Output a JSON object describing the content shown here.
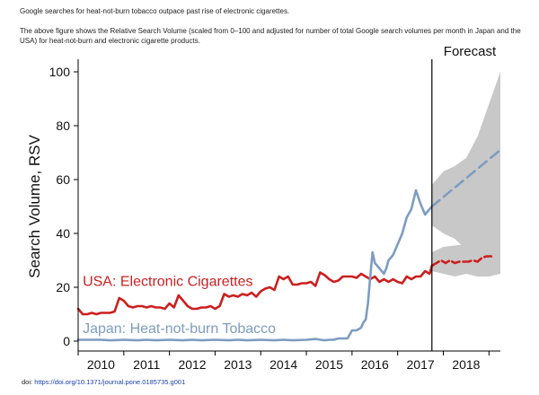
{
  "caption": {
    "title": "Google searches for heat-not-burn tobacco outpace past rise of electronic cigarettes.",
    "description": "The above figure shows the Relative Search Volume (scaled from 0–100 and adjusted for number of total Google search volumes per month in Japan and the USA) for heat-not-burn and electronic cigarette products."
  },
  "doi": {
    "label": "doi: ",
    "link": "https://doi.org/10.1371/journal.pone.0185735.g001"
  },
  "colors": {
    "usa": "#cc1f1f",
    "japan": "#7d9cc0",
    "band": "#c8c8c8",
    "axis": "#000000"
  },
  "chart_data": {
    "type": "line",
    "title": "",
    "xlabel": "",
    "ylabel": "Search Volume, RSV",
    "xlim": [
      2009.5,
      2018.75
    ],
    "ylim": [
      0,
      100
    ],
    "yticks": [
      0,
      20,
      40,
      60,
      80,
      100
    ],
    "xticks": [
      "2010",
      "2011",
      "2012",
      "2013",
      "2014",
      "2015",
      "2016",
      "2017",
      "2018"
    ],
    "forecast_start": 2017.25,
    "forecast_label": "Forecast",
    "series": [
      {
        "name": "USA: Electronic Cigarettes",
        "role": "observed",
        "x": [
          2009.5,
          2009.6,
          2009.7,
          2009.8,
          2009.9,
          2010.0,
          2010.1,
          2010.2,
          2010.3,
          2010.4,
          2010.5,
          2010.6,
          2010.7,
          2010.8,
          2010.9,
          2011.0,
          2011.1,
          2011.2,
          2011.3,
          2011.4,
          2011.5,
          2011.6,
          2011.7,
          2011.8,
          2011.9,
          2012.0,
          2012.1,
          2012.2,
          2012.3,
          2012.4,
          2012.5,
          2012.6,
          2012.7,
          2012.8,
          2012.9,
          2013.0,
          2013.1,
          2013.2,
          2013.3,
          2013.4,
          2013.5,
          2013.6,
          2013.7,
          2013.8,
          2013.9,
          2014.0,
          2014.1,
          2014.2,
          2014.3,
          2014.4,
          2014.5,
          2014.6,
          2014.7,
          2014.8,
          2014.9,
          2015.0,
          2015.1,
          2015.2,
          2015.3,
          2015.4,
          2015.5,
          2015.6,
          2015.7,
          2015.8,
          2015.9,
          2016.0,
          2016.1,
          2016.2,
          2016.3,
          2016.4,
          2016.5,
          2016.6,
          2016.7,
          2016.8,
          2016.9,
          2017.0,
          2017.1,
          2017.2,
          2017.25
        ],
        "y": [
          12,
          10,
          10,
          10.5,
          10,
          10.5,
          10.5,
          10.5,
          11,
          16,
          15,
          13,
          12.5,
          13,
          13,
          12.5,
          13,
          12.5,
          12.5,
          12,
          14,
          12.5,
          17,
          15,
          13,
          12,
          12,
          12.5,
          12.5,
          13,
          12,
          13,
          17.5,
          16.5,
          17,
          16.5,
          17.5,
          17,
          18,
          16.5,
          18.5,
          19.5,
          20,
          19,
          24,
          23,
          24,
          21,
          21,
          21.5,
          21.5,
          22,
          20.5,
          25.5,
          24.5,
          23,
          22,
          22.5,
          24,
          24,
          24,
          23.5,
          25,
          24,
          23,
          24,
          22,
          23,
          22,
          23,
          22,
          21.5,
          24,
          23,
          24,
          24,
          26,
          25,
          28
        ]
      },
      {
        "name": "USA: Electronic Cigarettes",
        "role": "forecast",
        "x": [
          2017.25,
          2017.35,
          2017.45,
          2017.55,
          2017.65,
          2017.75,
          2017.85,
          2017.95,
          2018.05,
          2018.15,
          2018.25,
          2018.35,
          2018.45,
          2018.55
        ],
        "y": [
          28,
          29,
          30,
          29,
          30,
          29,
          29.5,
          29.5,
          29.5,
          30,
          29.5,
          31,
          31.5,
          31.5
        ]
      },
      {
        "name": "Japan: Heat-not-burn Tobacco",
        "role": "observed",
        "x": [
          2009.5,
          2009.8,
          2010.0,
          2010.2,
          2010.5,
          2010.8,
          2011.0,
          2011.2,
          2011.5,
          2011.8,
          2012.0,
          2012.2,
          2012.5,
          2012.8,
          2013.0,
          2013.2,
          2013.5,
          2013.8,
          2014.0,
          2014.2,
          2014.5,
          2014.7,
          2014.9,
          2015.0,
          2015.1,
          2015.2,
          2015.3,
          2015.4,
          2015.5,
          2015.6,
          2015.7,
          2015.75,
          2015.8,
          2015.85,
          2015.9,
          2015.95,
          2016.0,
          2016.1,
          2016.2,
          2016.25,
          2016.3,
          2016.4,
          2016.5,
          2016.6,
          2016.7,
          2016.8,
          2016.9,
          2017.0,
          2017.1,
          2017.2,
          2017.25
        ],
        "y": [
          0.5,
          0.5,
          0.5,
          0.3,
          0.5,
          0.3,
          0.5,
          0.3,
          0.5,
          0.3,
          0.5,
          0.3,
          0.5,
          0.3,
          0.5,
          0.3,
          0.5,
          0.3,
          0.5,
          0.3,
          0.5,
          0.8,
          0.3,
          0.5,
          0.5,
          1,
          1,
          1,
          4,
          4,
          5,
          7,
          8,
          14,
          24,
          33,
          29,
          27,
          25,
          27,
          30,
          32,
          36,
          40,
          46,
          49,
          56,
          51,
          47,
          49,
          50
        ]
      },
      {
        "name": "Japan: Heat-not-burn Tobacco",
        "role": "forecast",
        "x": [
          2017.25,
          2018.75
        ],
        "y": [
          50,
          71
        ]
      }
    ],
    "forecast_bands": [
      {
        "name": "Japan: Heat-not-burn Tobacco 95% interval",
        "x": [
          2017.25,
          2017.5,
          2017.75,
          2018.0,
          2018.25,
          2018.5,
          2018.75
        ],
        "upper": [
          58,
          63,
          65,
          68,
          76,
          88,
          100
        ],
        "lower": [
          43,
          40,
          38,
          34,
          32,
          33,
          41
        ]
      },
      {
        "name": "USA: Electronic Cigarettes 95% interval",
        "x": [
          2017.25,
          2017.5,
          2017.75,
          2018.0,
          2018.25,
          2018.5,
          2018.75
        ],
        "upper": [
          33,
          35,
          35.5,
          36,
          37,
          40,
          42
        ],
        "lower": [
          26,
          25,
          24,
          25,
          24,
          24,
          25
        ]
      }
    ],
    "annotations": [
      {
        "text": "USA: Electronic Cigarettes",
        "series": "usa",
        "near": [
          2009.6,
          20.5
        ]
      },
      {
        "text": "Japan: Heat-not-burn Tobacco",
        "series": "japan",
        "near": [
          2009.6,
          3
        ]
      }
    ],
    "grid": false,
    "legend": "none"
  }
}
